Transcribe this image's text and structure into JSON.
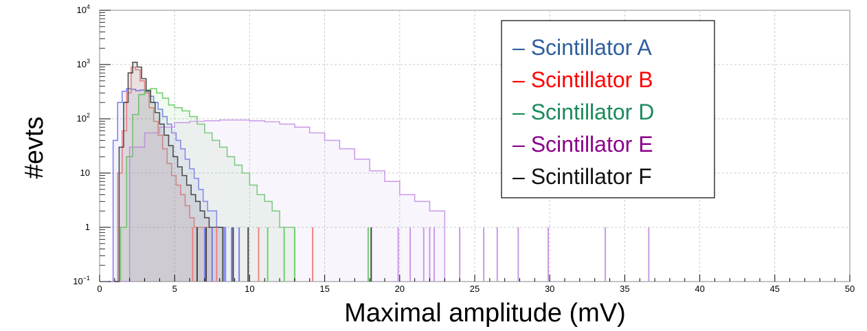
{
  "chart_data": {
    "type": "histogram",
    "xlabel": "Maximal amplitude (mV)",
    "ylabel": "#evts",
    "xlim": [
      0,
      50
    ],
    "ylim": [
      0.1,
      10000
    ],
    "yscale": "log",
    "grid": true,
    "legend_position": "top-right",
    "x_ticks": [
      "0",
      "5",
      "10",
      "15",
      "20",
      "25",
      "30",
      "35",
      "40",
      "45",
      "50"
    ],
    "y_ticks": [
      {
        "value": 0.1,
        "base": "10",
        "exp": "−1"
      },
      {
        "value": 1,
        "base": "1",
        "exp": ""
      },
      {
        "value": 10,
        "base": "10",
        "exp": ""
      },
      {
        "value": 100,
        "base": "10",
        "exp": "2"
      },
      {
        "value": 1000,
        "base": "10",
        "exp": "3"
      },
      {
        "value": 10000,
        "base": "10",
        "exp": "4"
      }
    ],
    "series": [
      {
        "name": "– Scintillator A",
        "color": "#2f5f9c",
        "fill": "#7b7bee",
        "x": [
          0.6,
          0.9,
          1.2,
          1.5,
          1.8,
          2.1,
          2.4,
          2.7,
          3.0,
          3.3,
          3.6,
          3.9,
          4.2,
          4.5,
          4.8,
          5.1,
          5.4,
          5.7,
          6.0,
          6.3,
          6.6,
          6.9,
          7.2,
          7.5,
          7.8,
          8.1,
          8.4
        ],
        "y": [
          0.1,
          40,
          200,
          320,
          360,
          350,
          330,
          340,
          320,
          260,
          200,
          150,
          110,
          80,
          55,
          40,
          28,
          18,
          12,
          8,
          5,
          3,
          2,
          2,
          1,
          1,
          0.1
        ]
      },
      {
        "name": "– Scintillator B",
        "color": "#ff0000",
        "fill": "#f08080",
        "x": [
          0.9,
          1.2,
          1.5,
          1.8,
          2.1,
          2.4,
          2.7,
          3.0,
          3.3,
          3.6,
          3.9,
          4.2,
          4.5,
          4.8,
          5.1,
          5.4,
          5.7,
          6.0,
          6.3,
          6.6,
          6.9,
          7.2,
          7.5
        ],
        "y": [
          0.1,
          10,
          60,
          300,
          900,
          800,
          500,
          300,
          160,
          90,
          50,
          28,
          15,
          9,
          6,
          4,
          2.5,
          1.5,
          1,
          1,
          1,
          1,
          0.1
        ]
      },
      {
        "name": "– Scintillator D",
        "color": "#1a8a5a",
        "fill": "#6fcf6f",
        "x": [
          1.0,
          1.4,
          1.8,
          2.2,
          2.6,
          3.0,
          3.4,
          3.8,
          4.2,
          4.6,
          5.0,
          5.5,
          6.0,
          6.5,
          7.0,
          7.5,
          8.0,
          8.5,
          9.0,
          9.5,
          10.0,
          10.5,
          11.0,
          11.5,
          12.0,
          12.5,
          13.0
        ],
        "y": [
          0.1,
          1,
          20,
          120,
          280,
          340,
          360,
          300,
          240,
          180,
          160,
          140,
          110,
          80,
          55,
          40,
          30,
          20,
          14,
          10,
          6,
          4,
          3,
          2,
          1,
          1,
          0.1
        ]
      },
      {
        "name": "– Scintillator E",
        "color": "#8b008b",
        "fill": "#c89ae8",
        "x": [
          1.0,
          2.0,
          3.0,
          4.0,
          5.0,
          6.0,
          7.0,
          8.0,
          9.0,
          10.0,
          11.0,
          12.0,
          13.0,
          14.0,
          15.0,
          16.0,
          17.0,
          18.0,
          19.0,
          20.0,
          21.0,
          22.0,
          23.0
        ],
        "y": [
          0.1,
          30,
          55,
          70,
          85,
          90,
          92,
          95,
          95,
          92,
          88,
          80,
          70,
          55,
          40,
          28,
          18,
          11,
          7,
          4,
          3,
          2,
          0.1
        ]
      },
      {
        "name": "– Scintillator F",
        "color": "#111111",
        "fill": "#444444",
        "x": [
          1.0,
          1.3,
          1.6,
          1.9,
          2.2,
          2.5,
          2.8,
          3.1,
          3.4,
          3.7,
          4.0,
          4.3,
          4.6,
          4.9,
          5.2,
          5.5,
          5.8,
          6.1,
          6.4,
          6.7,
          7.0,
          7.3,
          7.6,
          7.9,
          8.2
        ],
        "y": [
          0.1,
          30,
          200,
          700,
          1100,
          900,
          550,
          330,
          200,
          130,
          80,
          50,
          32,
          20,
          13,
          9,
          6,
          4,
          3,
          2,
          1.5,
          1,
          1,
          1,
          0.1
        ]
      }
    ],
    "isolated_counts": [
      {
        "series": "– Scintillator A",
        "x": [
          7.0,
          7.5,
          8.3,
          8.8,
          9.3
        ]
      },
      {
        "series": "– Scintillator B",
        "x": [
          6.2,
          7.8,
          10.6,
          14.2
        ]
      },
      {
        "series": "– Scintillator D",
        "x": [
          11.2,
          12.3,
          13.0,
          17.9
        ]
      },
      {
        "series": "– Scintillator E",
        "x": [
          19.9,
          20.7,
          21.6,
          22.0,
          22.3,
          24.0,
          25.6,
          26.5,
          27.9,
          29.9,
          33.7,
          36.6
        ]
      },
      {
        "series": "– Scintillator F",
        "x": [
          6.5,
          7.1,
          8.9,
          9.9,
          18.1
        ]
      }
    ]
  }
}
